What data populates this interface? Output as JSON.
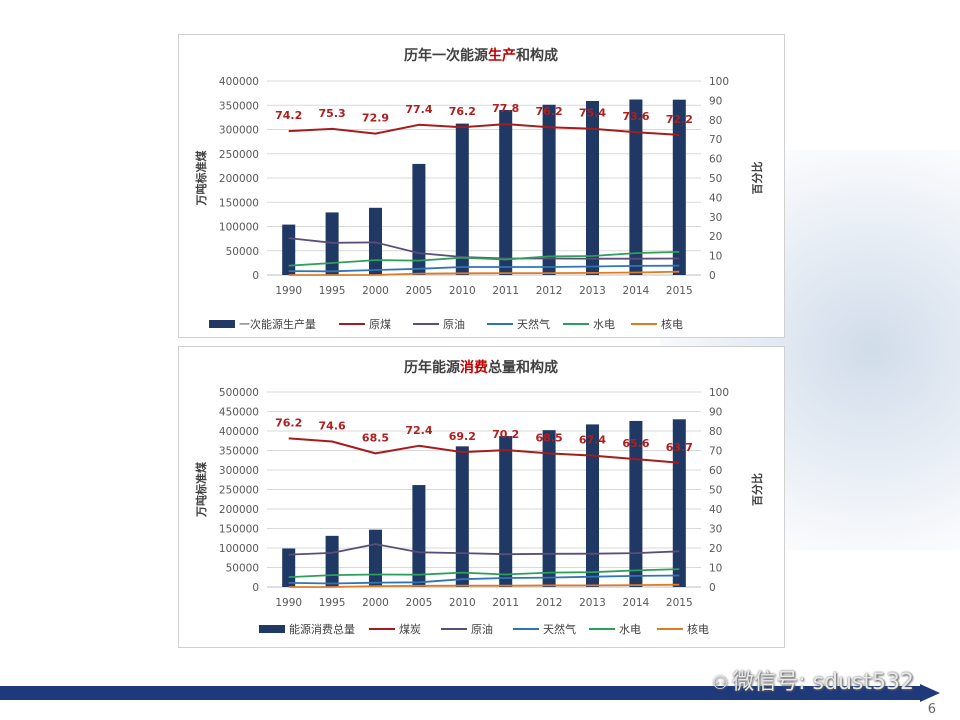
{
  "chart_data": [
    {
      "type": "bar",
      "title_parts": [
        "历年一次能源",
        "生产",
        "和构成"
      ],
      "ylabel": "万吨标准煤",
      "y2label": "百分比",
      "ylim": [
        0,
        400000
      ],
      "y2lim": [
        0,
        100
      ],
      "yticks": [
        "0",
        "50000",
        "100000",
        "150000",
        "200000",
        "250000",
        "300000",
        "350000",
        "400000"
      ],
      "y2ticks": [
        "0",
        "10",
        "20",
        "30",
        "40",
        "50",
        "60",
        "70",
        "80",
        "90",
        "100"
      ],
      "categories": [
        "1990",
        "1995",
        "2000",
        "2005",
        "2010",
        "2011",
        "2012",
        "2013",
        "2014",
        "2015"
      ],
      "bar_series": {
        "name": "一次能源生产量",
        "values": [
          103922,
          129034,
          138570,
          229037,
          312125,
          340178,
          351041,
          358784,
          361866,
          361476
        ]
      },
      "line_series": [
        {
          "name": "原煤",
          "values": [
            74.2,
            75.3,
            72.9,
            77.4,
            76.2,
            77.8,
            76.2,
            75.4,
            73.6,
            72.2
          ]
        },
        {
          "name": "原油",
          "values": [
            19.0,
            16.6,
            16.8,
            11.3,
            9.3,
            8.5,
            8.5,
            8.4,
            8.4,
            8.5
          ]
        },
        {
          "name": "天然气",
          "values": [
            2.0,
            1.9,
            2.6,
            3.2,
            4.1,
            4.1,
            4.1,
            4.4,
            4.7,
            4.8
          ]
        },
        {
          "name": "水电",
          "values": [
            4.8,
            6.2,
            7.7,
            7.4,
            8.9,
            8.0,
            9.6,
            9.8,
            11.3,
            11.9
          ]
        },
        {
          "name": "核电",
          "values": [
            0.0,
            0.0,
            0.0,
            0.7,
            0.9,
            1.0,
            1.0,
            1.1,
            1.3,
            1.7
          ]
        }
      ],
      "data_labels": [
        "74.2",
        "75.3",
        "72.9",
        "77.4",
        "76.2",
        "77.8",
        "76.2",
        "75.4",
        "73.6",
        "72.2"
      ],
      "colors": {
        "bar": "#1f3864",
        "原煤": "#a61c1c",
        "原油": "#5a4e78",
        "天然气": "#2e75b6",
        "水电": "#2ca05a",
        "核电": "#e07b24",
        "label": "#b01e1e",
        "highlight": "#c00000"
      },
      "legend": "bottom",
      "grid": true
    },
    {
      "type": "bar",
      "title_parts": [
        "历年能源",
        "消费",
        "总量和构成"
      ],
      "ylabel": "万吨标准煤",
      "y2label": "百分比",
      "ylim": [
        0,
        500000
      ],
      "y2lim": [
        0,
        100
      ],
      "yticks": [
        "0",
        "50000",
        "100000",
        "150000",
        "200000",
        "250000",
        "300000",
        "350000",
        "400000",
        "450000",
        "500000"
      ],
      "y2ticks": [
        "0",
        "10",
        "20",
        "30",
        "40",
        "50",
        "60",
        "70",
        "80",
        "90",
        "100"
      ],
      "categories": [
        "1990",
        "1995",
        "2000",
        "2005",
        "2010",
        "2011",
        "2012",
        "2013",
        "2014",
        "2015"
      ],
      "bar_series": {
        "name": "能源消费总量",
        "values": [
          98703,
          131176,
          146964,
          261369,
          360648,
          387043,
          402138,
          416913,
          425806,
          430000
        ]
      },
      "line_series": [
        {
          "name": "煤炭",
          "values": [
            76.2,
            74.6,
            68.5,
            72.4,
            69.2,
            70.2,
            68.5,
            67.4,
            65.6,
            63.7
          ]
        },
        {
          "name": "原油",
          "values": [
            16.6,
            17.5,
            22.0,
            17.8,
            17.4,
            16.8,
            17.0,
            17.1,
            17.4,
            18.3
          ]
        },
        {
          "name": "天然气",
          "values": [
            2.1,
            1.8,
            2.2,
            2.4,
            4.0,
            4.6,
            4.8,
            5.3,
            5.7,
            5.9
          ]
        },
        {
          "name": "水电",
          "values": [
            5.1,
            6.1,
            6.4,
            6.3,
            7.4,
            6.4,
            7.4,
            7.6,
            8.5,
            9.2
          ]
        },
        {
          "name": "核电",
          "values": [
            0.0,
            0.0,
            0.4,
            0.6,
            0.7,
            0.7,
            0.8,
            0.8,
            1.0,
            1.2
          ]
        }
      ],
      "data_labels": [
        "76.2",
        "74.6",
        "68.5",
        "72.4",
        "69.2",
        "70.2",
        "68.5",
        "67.4",
        "65.6",
        "63.7"
      ],
      "colors": {
        "bar": "#1f3864",
        "煤炭": "#a61c1c",
        "原油": "#5a4e78",
        "天然气": "#2e75b6",
        "水电": "#2ca05a",
        "核电": "#e07b24",
        "label": "#b01e1e",
        "highlight": "#c00000"
      },
      "legend": "bottom",
      "grid": true
    }
  ],
  "watermark": {
    "icon": "wechat-icon",
    "text": "微信号: sdust532"
  },
  "page_number": "6"
}
